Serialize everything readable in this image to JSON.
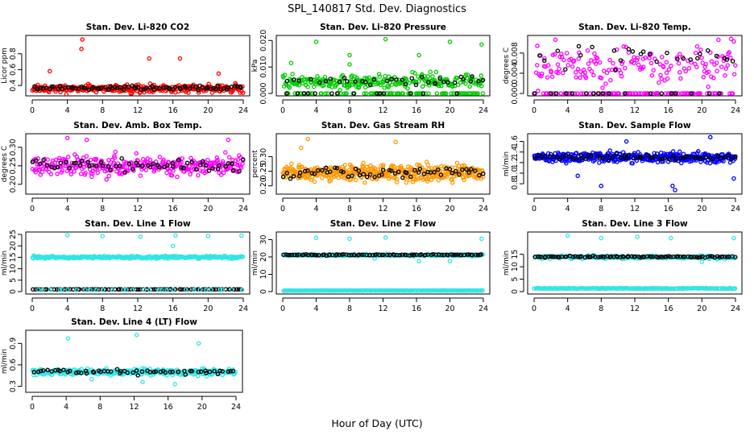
{
  "figure": {
    "title": "SPL_140817  Std. Dev. Diagnostics",
    "xlabel": "Hour of Day (UTC)"
  },
  "chart_data": [
    {
      "id": "co2",
      "type": "scatter",
      "title": "Stan. Dev. Li-820 CO2",
      "ylabel": "Licor ppm",
      "xlim": [
        0,
        24
      ],
      "ylim": [
        0.3,
        1.0
      ],
      "xticks": [
        "0",
        "4",
        "8",
        "12",
        "16",
        "20",
        "24"
      ],
      "yticks": [
        {
          "v": 0.4,
          "t": "0.4"
        },
        {
          "v": 0.6,
          "t": "0.6"
        },
        {
          "v": 0.8,
          "t": "0.8"
        }
      ],
      "series": [
        {
          "color": "#ff0000",
          "baseline": 0.36,
          "spread": 0.05,
          "count": 300,
          "outliers": [
            [
              5.7,
              0.98
            ],
            [
              5.6,
              0.86
            ],
            [
              13.3,
              0.74
            ],
            [
              16.8,
              0.74
            ],
            [
              21.2,
              0.55
            ],
            [
              2.0,
              0.58
            ]
          ]
        },
        {
          "color": "#000000",
          "baseline": 0.37,
          "spread": 0.03,
          "count": 80,
          "outliers": []
        }
      ]
    },
    {
      "id": "pressure",
      "type": "scatter",
      "title": "Stan. Dev. Li-820 Pressure",
      "ylabel": "kPa",
      "xlim": [
        0,
        24
      ],
      "ylim": [
        0,
        0.021
      ],
      "xticks": [
        "0",
        "4",
        "8",
        "12",
        "16",
        "20",
        "24"
      ],
      "yticks": [
        {
          "v": 0.0,
          "t": "0.000"
        },
        {
          "v": 0.01,
          "t": "0.010"
        },
        {
          "v": 0.02,
          "t": "0.020"
        }
      ],
      "series": [
        {
          "color": "#00cc00",
          "baseline": 0.0045,
          "spread": 0.0025,
          "count": 320,
          "zeroShare": 0.25,
          "outliers": [
            [
              1.0,
              0.0115
            ],
            [
              4.0,
              0.0195
            ],
            [
              8.0,
              0.0145
            ],
            [
              8.0,
              0.011
            ],
            [
              12.3,
              0.0205
            ],
            [
              16.3,
              0.0145
            ],
            [
              20.0,
              0.0195
            ],
            [
              23.8,
              0.0185
            ]
          ]
        },
        {
          "color": "#000000",
          "baseline": 0.005,
          "spread": 0.0015,
          "count": 50,
          "zeroShare": 0.35,
          "outliers": []
        }
      ]
    },
    {
      "id": "temp",
      "type": "scatter",
      "title": "Stan. Dev. Li-820 Temp.",
      "ylabel": "degrees C",
      "xlim": [
        0,
        24
      ],
      "ylim": [
        0,
        0.011
      ],
      "xticks": [
        "0",
        "4",
        "8",
        "12",
        "16",
        "20",
        "24"
      ],
      "yticks": [
        {
          "v": 0.0,
          "t": "0.000"
        },
        {
          "v": 0.004,
          "t": "0.004"
        },
        {
          "v": 0.008,
          "t": "0.008"
        }
      ],
      "series": [
        {
          "color": "#ff00ff",
          "baseline": 0.0055,
          "spread": 0.004,
          "count": 260,
          "zeroShare": 0.35,
          "outliers": []
        },
        {
          "color": "#000000",
          "baseline": 0.0075,
          "spread": 0.002,
          "count": 45,
          "zeroShare": 0.5,
          "outliers": []
        }
      ]
    },
    {
      "id": "ambbox",
      "type": "scatter",
      "title": "Stan. Dev. Amb. Box Temp.",
      "ylabel": "degrees C",
      "xlim": [
        0,
        24
      ],
      "ylim": [
        0.18,
        0.33
      ],
      "xticks": [
        "0",
        "4",
        "8",
        "12",
        "16",
        "20",
        "24"
      ],
      "yticks": [
        {
          "v": 0.2,
          "t": "0.20"
        },
        {
          "v": 0.25,
          "t": "0.25"
        },
        {
          "v": 0.3,
          "t": "0.30"
        }
      ],
      "series": [
        {
          "color": "#ff00ff",
          "baseline": 0.25,
          "spread": 0.025,
          "count": 320,
          "outliers": [
            [
              4.0,
              0.325
            ],
            [
              6.2,
              0.32
            ],
            [
              22.3,
              0.32
            ]
          ]
        },
        {
          "color": "#000000",
          "baseline": 0.25,
          "spread": 0.015,
          "count": 60,
          "outliers": []
        }
      ]
    },
    {
      "id": "rh",
      "type": "scatter",
      "title": "Stan. Dev. Gas Stream RH",
      "ylabel": "percent",
      "xlim": [
        0,
        24
      ],
      "ylim": [
        0.18,
        0.37
      ],
      "xticks": [
        "0",
        "4",
        "8",
        "12",
        "16",
        "20",
        "24"
      ],
      "yticks": [
        {
          "v": 0.2,
          "t": "0.20"
        },
        {
          "v": 0.25,
          "t": "0.25"
        },
        {
          "v": 0.3,
          "t": "0.30"
        }
      ],
      "series": [
        {
          "color": "#ff9900",
          "baseline": 0.245,
          "spread": 0.025,
          "count": 420,
          "outliers": [
            [
              3.0,
              0.36
            ],
            [
              2.2,
              0.33
            ],
            [
              13.5,
              0.35
            ]
          ]
        },
        {
          "color": "#000000",
          "baseline": 0.245,
          "spread": 0.018,
          "count": 60,
          "outliers": []
        }
      ]
    },
    {
      "id": "sampleflow",
      "type": "scatter",
      "title": "Stan. Dev. Sample Flow",
      "ylabel": "ml/min",
      "xlim": [
        0,
        24
      ],
      "ylim": [
        0.65,
        1.7
      ],
      "xticks": [
        "0",
        "4",
        "8",
        "12",
        "16",
        "20",
        "24"
      ],
      "yticks": [
        {
          "v": 0.8,
          "t": "0.8"
        },
        {
          "v": 1.0,
          "t": "1.0"
        },
        {
          "v": 1.2,
          "t": "1.2"
        },
        {
          "v": 1.4,
          "t": "1.4"
        },
        {
          "v": 1.6,
          "t": "1.6"
        }
      ],
      "series": [
        {
          "color": "#0000ff",
          "baseline": 1.3,
          "spread": 0.09,
          "count": 380,
          "outliers": [
            [
              8.0,
              0.76
            ],
            [
              16.5,
              0.76
            ],
            [
              16.8,
              0.68
            ],
            [
              23.8,
              0.9
            ],
            [
              21.0,
              1.68
            ],
            [
              5.2,
              0.95
            ],
            [
              11.0,
              1.6
            ]
          ]
        },
        {
          "color": "#000000",
          "baseline": 1.3,
          "spread": 0.05,
          "count": 60,
          "outliers": []
        }
      ]
    },
    {
      "id": "line1",
      "type": "scatter",
      "title": "Stan. Dev. Line 1 Flow",
      "ylabel": "ml/min",
      "xlim": [
        0,
        24
      ],
      "ylim": [
        0,
        25
      ],
      "xticks": [
        "0",
        "4",
        "8",
        "12",
        "16",
        "20",
        "24"
      ],
      "yticks": [
        {
          "v": 0,
          "t": "0"
        },
        {
          "v": 5,
          "t": "5"
        },
        {
          "v": 10,
          "t": "10"
        },
        {
          "v": 15,
          "t": "15"
        },
        {
          "v": 20,
          "t": "20"
        },
        {
          "v": 25,
          "t": "25"
        }
      ],
      "series": [
        {
          "color": "#33e5e5",
          "baseline": 15.0,
          "spread": 0.5,
          "count": 300,
          "outliers": [
            [
              4.0,
              24.6
            ],
            [
              8.0,
              24.2
            ],
            [
              12.3,
              24.0
            ],
            [
              16.3,
              24.5
            ],
            [
              20.0,
              24.3
            ],
            [
              23.8,
              24.5
            ],
            [
              16.0,
              20.0
            ]
          ]
        },
        {
          "color": "#000000",
          "baseline": 1.0,
          "spread": 0.05,
          "count": 90,
          "outliers": []
        },
        {
          "color": "#33e5e5",
          "baseline": 0.8,
          "spread": 0.05,
          "count": 30,
          "outliers": []
        }
      ]
    },
    {
      "id": "line2",
      "type": "scatter",
      "title": "Stan. Dev. Line 2 Flow",
      "ylabel": "ml/min",
      "xlim": [
        0,
        24
      ],
      "ylim": [
        0,
        33
      ],
      "xticks": [
        "0",
        "4",
        "8",
        "12",
        "16",
        "20",
        "24"
      ],
      "yticks": [
        {
          "v": 0,
          "t": "0"
        },
        {
          "v": 10,
          "t": "10"
        },
        {
          "v": 20,
          "t": "20"
        },
        {
          "v": 30,
          "t": "30"
        }
      ],
      "series": [
        {
          "color": "#33e5e5",
          "baseline": 21.0,
          "spread": 0.6,
          "count": 200,
          "outliers": [
            [
              4.0,
              31.0
            ],
            [
              8.0,
              30.5
            ],
            [
              12.3,
              31.2
            ],
            [
              23.8,
              30.5
            ],
            [
              16.3,
              17.5
            ],
            [
              20.0,
              17.5
            ],
            [
              11.0,
              19.0
            ]
          ]
        },
        {
          "color": "#000000",
          "baseline": 21.2,
          "spread": 0.3,
          "count": 90,
          "outliers": []
        },
        {
          "color": "#33e5e5",
          "baseline": 0.6,
          "spread": 0.1,
          "count": 200,
          "outliers": []
        }
      ]
    },
    {
      "id": "line3",
      "type": "scatter",
      "title": "Stan. Dev. Line 3 Flow",
      "ylabel": "ml/min",
      "xlim": [
        0,
        24
      ],
      "ylim": [
        0,
        23
      ],
      "xticks": [
        "0",
        "4",
        "8",
        "12",
        "16",
        "20",
        "24"
      ],
      "yticks": [
        {
          "v": 0,
          "t": "0"
        },
        {
          "v": 5,
          "t": "5"
        },
        {
          "v": 10,
          "t": "10"
        },
        {
          "v": 15,
          "t": "15"
        }
      ],
      "series": [
        {
          "color": "#33e5e5",
          "baseline": 13.8,
          "spread": 0.6,
          "count": 200,
          "outliers": [
            [
              4.0,
              22.5
            ],
            [
              8.0,
              21.5
            ],
            [
              12.3,
              22.0
            ],
            [
              16.3,
              21.5
            ],
            [
              23.8,
              21.5
            ],
            [
              20.0,
              12.0
            ]
          ]
        },
        {
          "color": "#000000",
          "baseline": 14.0,
          "spread": 0.3,
          "count": 90,
          "outliers": []
        },
        {
          "color": "#33e5e5",
          "baseline": 1.3,
          "spread": 0.15,
          "count": 200,
          "outliers": []
        }
      ]
    },
    {
      "id": "line4",
      "type": "scatter",
      "title": "Stan. Dev. Line 4 (LT) Flow",
      "ylabel": "ml/min",
      "xlim": [
        0,
        24
      ],
      "ylim": [
        0.25,
        1.05
      ],
      "xticks": [
        "0",
        "4",
        "8",
        "12",
        "16",
        "20",
        "24"
      ],
      "yticks": [
        {
          "v": 0.3,
          "t": "0.3"
        },
        {
          "v": 0.6,
          "t": "0.6"
        },
        {
          "v": 0.9,
          "t": "0.9"
        }
      ],
      "series": [
        {
          "color": "#33e5e5",
          "baseline": 0.5,
          "spread": 0.04,
          "count": 320,
          "outliers": [
            [
              4.2,
              0.97
            ],
            [
              12.3,
              1.02
            ],
            [
              19.6,
              0.9
            ],
            [
              7.0,
              0.4
            ],
            [
              16.8,
              0.33
            ],
            [
              13.0,
              0.36
            ]
          ]
        },
        {
          "color": "#000000",
          "baseline": 0.5,
          "spread": 0.03,
          "count": 60,
          "outliers": []
        }
      ]
    }
  ]
}
